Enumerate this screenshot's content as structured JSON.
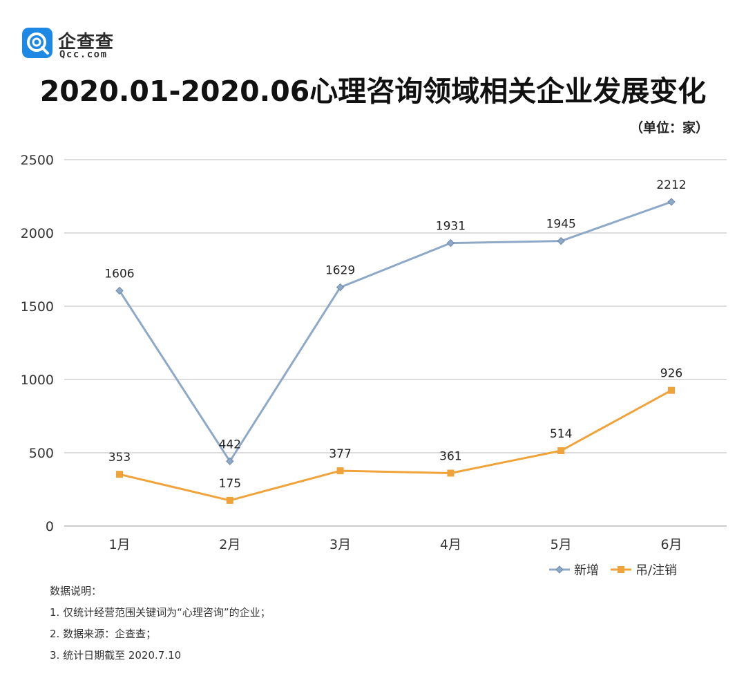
{
  "brand": {
    "name": "企查查",
    "domain": "Qcc.com",
    "icon": "qcc-logo-icon",
    "color": "#1e88e5"
  },
  "header": {
    "title": "2020.01-2020.06心理咨询领域相关企业发展变化",
    "unit": "（单位：家）"
  },
  "chart_data": {
    "type": "line",
    "title": "2020.01-2020.06心理咨询领域相关企业发展变化",
    "unit": "（单位：家）",
    "categories": [
      "1月",
      "2月",
      "3月",
      "4月",
      "5月",
      "6月"
    ],
    "series": [
      {
        "name": "新增",
        "values": [
          1606,
          442,
          1629,
          1931,
          1945,
          2212
        ],
        "color": "#8ea9c8",
        "marker": "diamond"
      },
      {
        "name": "吊/注销",
        "values": [
          353,
          175,
          377,
          361,
          514,
          926
        ],
        "color": "#f0a33a",
        "marker": "square"
      }
    ],
    "ylim": [
      0,
      2500
    ],
    "yticks": [
      0,
      500,
      1000,
      1500,
      2000,
      2500
    ],
    "grid": true,
    "legend": "bottom-right"
  },
  "notes": {
    "heading": "数据说明：",
    "items": [
      "1. 仅统计经营范围关键词为“心理咨询”的企业；",
      "2. 数据来源：企查查；",
      "3. 统计日期截至 2020.7.10"
    ]
  }
}
